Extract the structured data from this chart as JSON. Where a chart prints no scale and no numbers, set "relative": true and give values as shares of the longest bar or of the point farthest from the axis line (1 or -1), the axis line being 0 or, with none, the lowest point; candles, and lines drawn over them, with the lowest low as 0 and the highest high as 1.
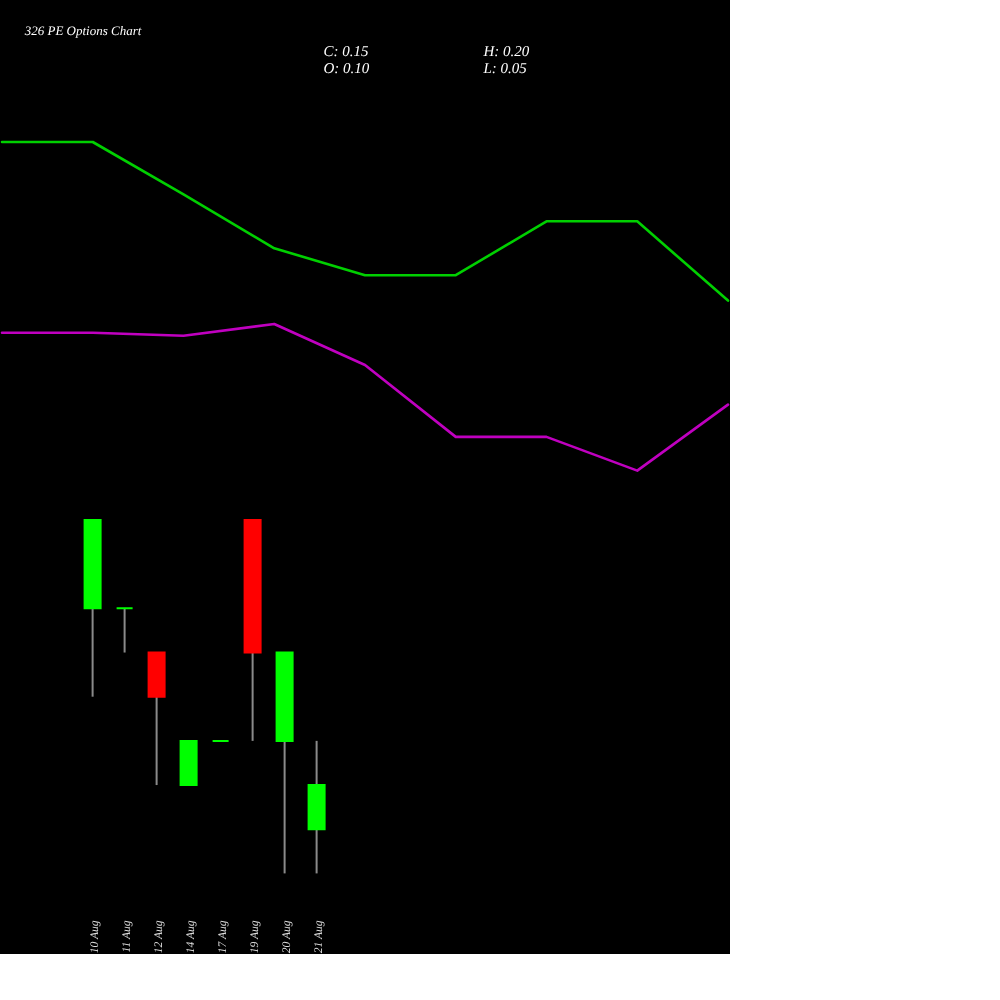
{
  "chart_data": [
    {
      "type": "line",
      "title": "326 PE Options Chart",
      "annotations": [
        "C: 0.15",
        "O: 0.10",
        "H: 0.20",
        "L: 0.05"
      ],
      "categories": [
        null,
        null,
        null,
        null,
        null,
        null,
        null,
        null,
        null
      ],
      "relative": true,
      "series": [
        {
          "color": "#00d000",
          "values": [
            1,
            1,
            0.67,
            0.33,
            0.16,
            0.16,
            0.5,
            0.5,
            0
          ]
        }
      ]
    },
    {
      "type": "line",
      "categories": [
        null,
        null,
        null,
        null,
        null,
        null,
        null,
        null,
        null
      ],
      "relative": true,
      "series": [
        {
          "color": "#c000c0",
          "values": [
            0.94,
            0.94,
            0.92,
            1,
            0.72,
            0.23,
            0.23,
            0,
            0.45
          ]
        }
      ]
    },
    {
      "type": "candlestick",
      "categories": [
        "10 Aug",
        "11 Aug",
        "12 Aug",
        "14 Aug",
        "17 Aug",
        "19 Aug",
        "20 Aug",
        "21 Aug"
      ],
      "relative": true,
      "ohlc": [
        [
          0.75,
          1,
          0.5,
          1
        ],
        [
          0.75,
          0.75,
          0.625,
          0.75
        ],
        [
          0.625,
          0.625,
          0.25,
          0.5
        ],
        [
          0.25,
          0.375,
          0.25,
          0.375
        ],
        [
          0.375,
          0.375,
          0.375,
          0.375
        ],
        [
          1,
          1,
          0.375,
          0.625
        ],
        [
          0.375,
          0.625,
          0,
          0.625
        ],
        [
          0.125,
          0.375,
          0,
          0.25
        ]
      ],
      "colors": [
        "#00ff00",
        "#00ff00",
        "#ff0000",
        "#00ff00",
        "#00ff00",
        "#ff0000",
        "#00ff00",
        "#00ff00"
      ]
    }
  ]
}
